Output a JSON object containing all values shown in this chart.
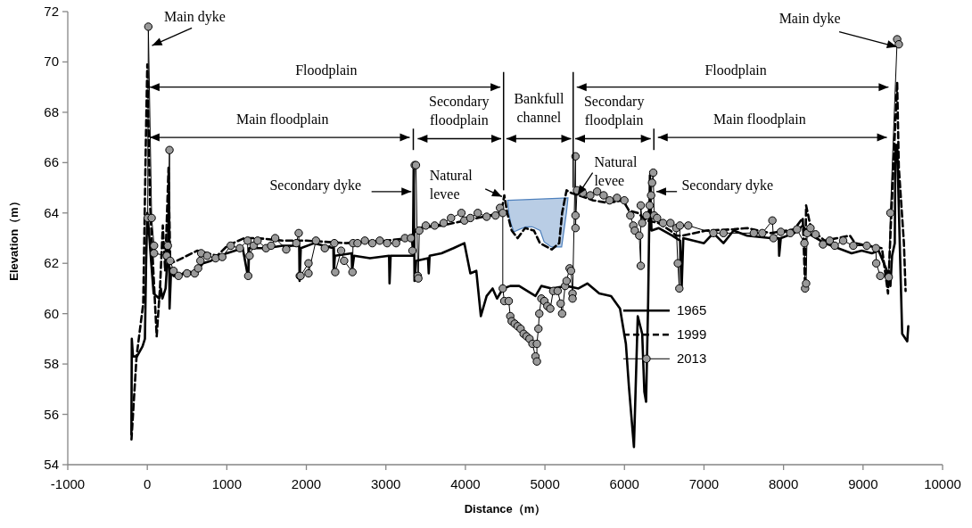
{
  "chart_data": {
    "type": "line",
    "xlabel": "Distance（m）",
    "ylabel": "Elevation（m）",
    "xlim": [
      -1000,
      10000
    ],
    "xticks": [
      -1000,
      0,
      1000,
      2000,
      3000,
      4000,
      5000,
      6000,
      7000,
      8000,
      9000,
      10000
    ],
    "ylim": [
      54,
      72
    ],
    "yticks": [
      54,
      56,
      58,
      60,
      62,
      64,
      66,
      68,
      70,
      72
    ],
    "grid": false,
    "legend": "right",
    "series": [
      {
        "name": "1965",
        "color": "#000000",
        "line_style": "solid",
        "marker": "none",
        "x": [
          -200,
          -195,
          -180,
          -130,
          -60,
          -30,
          -15,
          0,
          20,
          50,
          80,
          150,
          170,
          190,
          230,
          260,
          270,
          280,
          300,
          330,
          400,
          500,
          600,
          700,
          800,
          1000,
          1200,
          1270,
          1280,
          1500,
          1700,
          1910,
          1915,
          1930,
          2100,
          2340,
          2344,
          2360,
          2570,
          2575,
          2600,
          2800,
          3040,
          3046,
          3060,
          3340,
          3350,
          3360,
          3380,
          3530,
          3539,
          3550,
          3700,
          3850,
          3987,
          4062,
          4137,
          4194,
          4267,
          4342,
          4398,
          4473,
          4564,
          4676,
          4881,
          4955,
          5086,
          5272,
          5421,
          5533,
          5683,
          5832,
          5944,
          6018,
          6056,
          6119,
          6167,
          6223,
          6250,
          6272,
          6298,
          6320,
          6340,
          6429,
          6600,
          6700,
          6720,
          6740,
          7000,
          7118,
          7245,
          7372,
          7542,
          7839,
          7940,
          7945,
          7966,
          8136,
          8242,
          8305,
          8517,
          8856,
          8984,
          9111,
          9196,
          9302,
          9344,
          9365,
          9399,
          9407,
          9429,
          9459,
          9492,
          9556,
          9569
        ],
        "values": [
          55.2,
          59.0,
          58.3,
          58.3,
          58.7,
          59.0,
          62.0,
          64.0,
          63.3,
          62.0,
          60.8,
          60.6,
          61.0,
          60.6,
          61.0,
          62.5,
          64.5,
          60.2,
          61.8,
          61.5,
          61.5,
          61.7,
          61.6,
          62.0,
          62.1,
          62.4,
          62.6,
          61.4,
          62.6,
          62.6,
          62.7,
          62.7,
          61.3,
          62.6,
          62.8,
          62.6,
          61.7,
          62.3,
          62.4,
          61.7,
          62.3,
          62.2,
          62.3,
          61.2,
          62.3,
          62.3,
          66.0,
          61.3,
          62.1,
          62.2,
          61.6,
          62.3,
          62.4,
          62.6,
          62.8,
          61.6,
          61.7,
          59.9,
          60.7,
          61.0,
          60.6,
          61.0,
          61.1,
          61.1,
          60.7,
          61.1,
          61.0,
          61.1,
          61.0,
          61.2,
          60.8,
          60.7,
          60.2,
          58.8,
          57.1,
          54.7,
          59.9,
          59.2,
          56.9,
          56.5,
          60.5,
          65.5,
          63.3,
          63.4,
          63.1,
          62.9,
          61.1,
          63.0,
          62.8,
          63.2,
          62.8,
          63.3,
          63.1,
          63.0,
          63.0,
          62.3,
          63.0,
          63.2,
          63.5,
          63.2,
          62.8,
          62.4,
          62.5,
          62.4,
          62.5,
          61.7,
          61.1,
          62.3,
          62.8,
          66.7,
          66.7,
          63.1,
          59.2,
          58.9,
          59.5
        ]
      },
      {
        "name": "1999",
        "color": "#000000",
        "line_style": "dashed",
        "marker": "none",
        "x": [
          -199,
          -135,
          -51,
          -17,
          0,
          34,
          76,
          118,
          161,
          195,
          224,
          267,
          288,
          372,
          626,
          880,
          1007,
          1218,
          1387,
          1700,
          2000,
          2500,
          3000,
          3300,
          3400,
          3700,
          4000,
          4300,
          4450,
          4489,
          4526,
          4582,
          4657,
          4750,
          4862,
          4937,
          5086,
          5179,
          5216,
          5272,
          5328,
          5421,
          5608,
          5794,
          5981,
          6056,
          6167,
          6279,
          6429,
          6578,
          6652,
          6727,
          7025,
          7372,
          7542,
          7839,
          8136,
          8242,
          8271,
          8284,
          8348,
          8517,
          8835,
          8899,
          9238,
          9314,
          9344,
          9399,
          9429,
          9450,
          9514,
          9535
        ],
        "values": [
          55.0,
          58.3,
          60.4,
          67.1,
          69.9,
          64.4,
          61.7,
          59.1,
          61.1,
          63.5,
          61.7,
          65.8,
          62.0,
          62.1,
          62.5,
          62.3,
          62.7,
          63.0,
          63.0,
          62.9,
          62.9,
          62.8,
          62.9,
          63.0,
          63.4,
          63.5,
          63.7,
          63.9,
          64.0,
          64.7,
          64.0,
          63.3,
          63.0,
          63.4,
          63.3,
          62.8,
          62.55,
          62.8,
          64.0,
          64.9,
          64.8,
          64.7,
          64.5,
          64.4,
          64.5,
          64.1,
          64.0,
          63.7,
          63.6,
          63.3,
          63.1,
          63.1,
          63.3,
          63.35,
          63.4,
          63.2,
          63.35,
          63.8,
          61.1,
          64.3,
          63.35,
          62.9,
          63.1,
          62.8,
          62.6,
          60.8,
          63.1,
          67.1,
          69.2,
          65.8,
          62.8,
          60.9
        ]
      },
      {
        "name": "2013",
        "color": "#000000",
        "line_style": "solid",
        "marker": "circle",
        "x": [
          5,
          13,
          55,
          85,
          85,
          245,
          258,
          279,
          288,
          330,
          393,
          499,
          596,
          639,
          668,
          677,
          753,
          859,
          943,
          1049,
          1163,
          1261,
          1269,
          1286,
          1337,
          1387,
          1493,
          1557,
          1608,
          1747,
          1874,
          1904,
          1917,
          1927,
          2027,
          2027,
          2121,
          2232,
          2352,
          2363,
          2437,
          2475,
          2580,
          2587,
          2643,
          2736,
          2830,
          2923,
          3016,
          3128,
          3240,
          3315,
          3334,
          3363,
          3378,
          3401,
          3408,
          3420,
          3502,
          3614,
          3726,
          3819,
          3950,
          3987,
          4062,
          4155,
          4267,
          4379,
          4435,
          4470,
          4470,
          4489,
          4545,
          4564,
          4582,
          4620,
          4657,
          4694,
          4732,
          4769,
          4806,
          4843,
          4881,
          4899,
          4899,
          4918,
          4929,
          4955,
          4993,
          5030,
          5067,
          5104,
          5160,
          5198,
          5216,
          5254,
          5272,
          5310,
          5328,
          5347,
          5347,
          5384,
          5384,
          5384,
          5403,
          5477,
          5570,
          5656,
          5738,
          5813,
          5906,
          5999,
          6074,
          6111,
          6130,
          6186,
          6205,
          6205,
          6223,
          6279,
          6317,
          6335,
          6347,
          6362,
          6373,
          6410,
          6485,
          6578,
          6652,
          6671,
          6690,
          6697,
          6802,
          7118,
          7245,
          7627,
          7733,
          7860,
          7873,
          7966,
          8085,
          8170,
          8263,
          8271,
          8284,
          8297,
          8339,
          8403,
          8496,
          8581,
          8644,
          8750,
          8877,
          9047,
          9162,
          9166,
          9217,
          9323,
          9344,
          9429,
          9450
        ],
        "values": [
          63.8,
          71.4,
          63.8,
          62.7,
          62.4,
          62.3,
          62.7,
          66.5,
          62.1,
          61.7,
          61.5,
          61.6,
          61.6,
          61.8,
          62.1,
          62.4,
          62.3,
          62.2,
          62.25,
          62.7,
          62.6,
          62.9,
          61.5,
          62.3,
          62.7,
          62.9,
          62.6,
          62.7,
          63.0,
          62.55,
          62.8,
          63.2,
          61.5,
          61.5,
          62.0,
          61.6,
          62.9,
          62.6,
          62.8,
          61.65,
          62.5,
          62.1,
          61.65,
          62.8,
          62.8,
          62.9,
          62.8,
          62.9,
          62.8,
          62.8,
          63.0,
          63.0,
          62.5,
          65.9,
          65.9,
          61.5,
          61.4,
          63.3,
          63.5,
          63.5,
          63.6,
          63.8,
          64.0,
          63.7,
          63.8,
          64.0,
          63.85,
          63.9,
          64.2,
          64.0,
          61.0,
          60.5,
          60.5,
          59.9,
          59.7,
          59.6,
          59.5,
          59.4,
          59.2,
          59.1,
          59.0,
          58.8,
          58.3,
          58.1,
          58.8,
          59.4,
          60.0,
          60.6,
          60.5,
          60.3,
          60.2,
          60.9,
          60.9,
          60.4,
          60.0,
          61.1,
          61.3,
          61.8,
          61.7,
          60.8,
          60.6,
          66.25,
          63.9,
          63.4,
          64.9,
          64.8,
          64.7,
          64.85,
          64.7,
          64.5,
          64.6,
          64.5,
          63.9,
          63.5,
          63.3,
          63.1,
          61.9,
          64.3,
          63.6,
          63.9,
          64.3,
          64.7,
          65.2,
          65.6,
          63.9,
          63.8,
          63.6,
          63.6,
          63.4,
          62.0,
          61.0,
          63.5,
          63.5,
          63.2,
          63.2,
          63.2,
          63.2,
          63.7,
          63.0,
          63.25,
          63.2,
          63.35,
          62.8,
          61.0,
          61.2,
          63.2,
          63.4,
          63.15,
          62.75,
          62.9,
          62.7,
          62.9,
          62.7,
          62.7,
          62.6,
          62.0,
          61.5,
          61.45,
          64.0,
          70.9,
          70.7
        ]
      }
    ],
    "annotations": [
      {
        "text": "Main dyke",
        "x": 60,
        "y": 70.65
      },
      "Floodplain",
      "Main floodplain",
      "Secondary dyke",
      "Secondary floodplain",
      "Bankfull channel",
      {
        "text": "Natural levee",
        "x": 4460,
        "y": 64.65
      },
      "Floodplain",
      "Secondary floodplain",
      "Main floodplain",
      {
        "text": "Natural levee",
        "x": 5410,
        "y": 64.7
      },
      {
        "text": "Secondary dyke",
        "x": 6400,
        "y": 64.85
      },
      {
        "text": "Main dyke",
        "x": 9425,
        "y": 70.6
      }
    ]
  }
}
